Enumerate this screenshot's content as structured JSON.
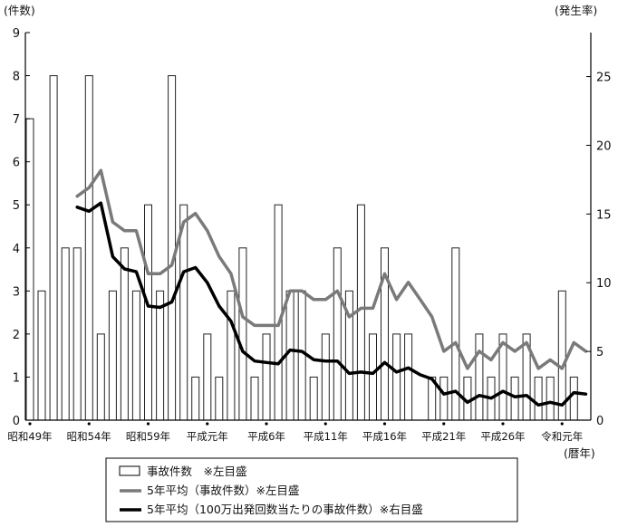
{
  "chart_data": {
    "type": "bar",
    "units": {
      "left": "(件数)",
      "right": "(発生率)",
      "x": "(暦年)"
    },
    "x_tick_labels": [
      "昭和49年",
      "昭和54年",
      "昭和59年",
      "平成元年",
      "平成6年",
      "平成11年",
      "平成16年",
      "平成21年",
      "平成26年",
      "令和元年"
    ],
    "y_left_ticks": [
      0,
      1,
      2,
      3,
      4,
      5,
      6,
      7,
      8,
      9
    ],
    "y_right_ticks": [
      0,
      5,
      10,
      15,
      20,
      25
    ],
    "ylim_left": [
      0,
      9
    ],
    "ylim_right": [
      0,
      28.2
    ],
    "x": [
      1974,
      1975,
      1976,
      1977,
      1978,
      1979,
      1980,
      1981,
      1982,
      1983,
      1984,
      1985,
      1986,
      1987,
      1988,
      1989,
      1990,
      1991,
      1992,
      1993,
      1994,
      1995,
      1996,
      1997,
      1998,
      1999,
      2000,
      2001,
      2002,
      2003,
      2004,
      2005,
      2006,
      2007,
      2008,
      2009,
      2010,
      2011,
      2012,
      2013,
      2014,
      2015,
      2016,
      2017,
      2018,
      2019,
      2020,
      2021
    ],
    "series": [
      {
        "name": "事故件数 ※左目盛",
        "kind": "bar",
        "axis": "left",
        "values": [
          7,
          3,
          8,
          4,
          4,
          8,
          2,
          3,
          4,
          3,
          5,
          3,
          8,
          5,
          1,
          2,
          1,
          3,
          4,
          1,
          2,
          5,
          3,
          3,
          1,
          2,
          4,
          3,
          5,
          2,
          4,
          2,
          2,
          0,
          1,
          1,
          4,
          1,
          2,
          1,
          2,
          1,
          2,
          1,
          1,
          3,
          1,
          0
        ]
      },
      {
        "name": "5年平均（事故件数）※左目盛",
        "kind": "line",
        "color": "#7a7a7a",
        "axis": "left",
        "x": [
          1978,
          1979,
          1980,
          1981,
          1982,
          1983,
          1984,
          1985,
          1986,
          1987,
          1988,
          1989,
          1990,
          1991,
          1992,
          1993,
          1994,
          1995,
          1996,
          1997,
          1998,
          1999,
          2000,
          2001,
          2002,
          2003,
          2004,
          2005,
          2006,
          2007,
          2008,
          2009,
          2010,
          2011,
          2012,
          2013,
          2014,
          2015,
          2016,
          2017,
          2018,
          2019,
          2020,
          2021
        ],
        "values": [
          5.2,
          5.4,
          5.8,
          4.6,
          4.4,
          4.4,
          3.4,
          3.4,
          3.6,
          4.6,
          4.8,
          4.4,
          3.8,
          3.4,
          2.4,
          2.2,
          2.2,
          2.2,
          3.0,
          3.0,
          2.8,
          2.8,
          3.0,
          2.4,
          2.6,
          2.6,
          3.4,
          2.8,
          3.2,
          2.8,
          2.4,
          1.6,
          1.8,
          1.2,
          1.6,
          1.4,
          1.8,
          1.6,
          1.8,
          1.2,
          1.4,
          1.2,
          1.8,
          1.6
        ]
      },
      {
        "name": "5年平均（100万出発回数当たりの事故件数）※右目盛",
        "kind": "line",
        "color": "#000000",
        "axis": "right",
        "x": [
          1978,
          1979,
          1980,
          1981,
          1982,
          1983,
          1984,
          1985,
          1986,
          1987,
          1988,
          1989,
          1990,
          1991,
          1992,
          1993,
          1994,
          1995,
          1996,
          1997,
          1998,
          1999,
          2000,
          2001,
          2002,
          2003,
          2004,
          2005,
          2006,
          2007,
          2008,
          2009,
          2010,
          2011,
          2012,
          2013,
          2014,
          2015,
          2016,
          2017,
          2018,
          2019,
          2020,
          2021
        ],
        "values": [
          15.5,
          15.2,
          15.8,
          11.9,
          11.0,
          10.8,
          8.3,
          8.2,
          8.6,
          10.8,
          11.1,
          10.0,
          8.3,
          7.2,
          5.0,
          4.3,
          4.2,
          4.1,
          5.1,
          5.0,
          4.4,
          4.3,
          4.3,
          3.4,
          3.5,
          3.4,
          4.2,
          3.5,
          3.8,
          3.3,
          3.0,
          1.9,
          2.1,
          1.3,
          1.8,
          1.6,
          2.1,
          1.7,
          1.8,
          1.1,
          1.3,
          1.1,
          2.0,
          1.9
        ]
      }
    ],
    "legend": {
      "placement": "bottom-center",
      "entries": [
        "事故件数　※左目盛",
        "5年平均（事故件数）※左目盛",
        "5年平均（100万出発回数当たりの事故件数）※右目盛"
      ]
    },
    "grid": false
  }
}
